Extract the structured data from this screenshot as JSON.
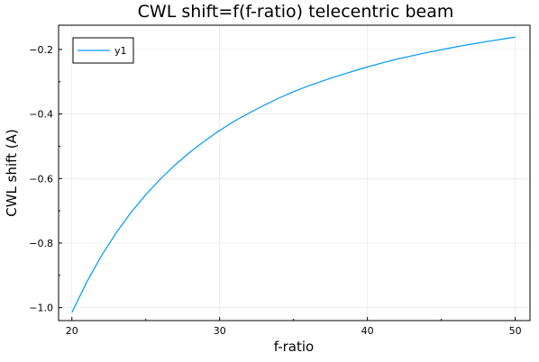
{
  "chart_data": {
    "type": "line",
    "title": "CWL shift=f(f-ratio) telecentric beam",
    "xlabel": "f-ratio",
    "ylabel": "CWL shift (A)",
    "xlim": [
      19.1,
      51
    ],
    "ylim": [
      -1.04,
      -0.125
    ],
    "xticks": [
      20,
      30,
      40,
      50
    ],
    "xtick_labels": [
      "20",
      "30",
      "40",
      "50"
    ],
    "yticks": [
      -1.0,
      -0.8,
      -0.6,
      -0.4,
      -0.2
    ],
    "ytick_labels": [
      "−1.0",
      "−0.8",
      "−0.6",
      "−0.4",
      "−0.2"
    ],
    "grid": true,
    "legend_position": "top-left",
    "series": [
      {
        "name": "y1",
        "color": "#009af9",
        "x": [
          20,
          21,
          22,
          23,
          24,
          25,
          26,
          27,
          28,
          29,
          30,
          31,
          32,
          33,
          34,
          35,
          36,
          37,
          38,
          39,
          40,
          41,
          42,
          43,
          44,
          45,
          46,
          47,
          48,
          49,
          50
        ],
        "y": [
          -1.015,
          -0.921,
          -0.839,
          -0.768,
          -0.705,
          -0.65,
          -0.601,
          -0.557,
          -0.518,
          -0.483,
          -0.451,
          -0.422,
          -0.397,
          -0.373,
          -0.351,
          -0.331,
          -0.313,
          -0.297,
          -0.282,
          -0.268,
          -0.254,
          -0.242,
          -0.23,
          -0.22,
          -0.21,
          -0.201,
          -0.192,
          -0.184,
          -0.176,
          -0.169,
          -0.162
        ]
      }
    ]
  }
}
